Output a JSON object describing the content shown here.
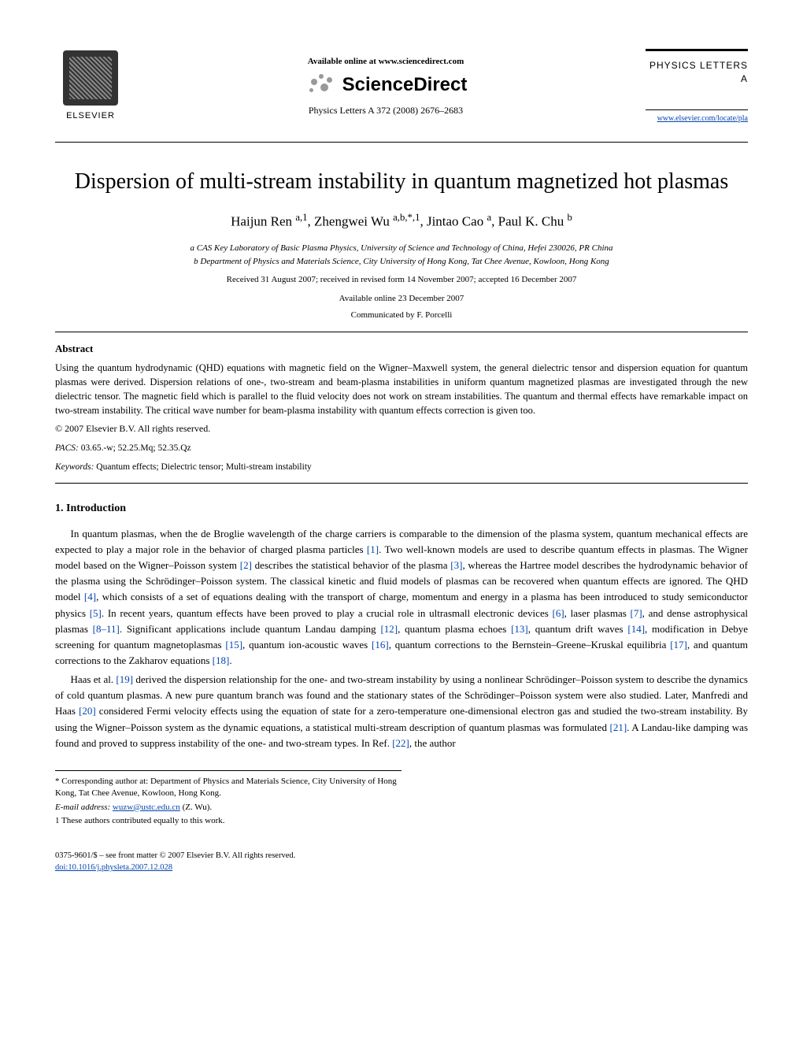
{
  "header": {
    "elsevier_label": "ELSEVIER",
    "available_online": "Available online at www.sciencedirect.com",
    "sciencedirect": "ScienceDirect",
    "journal_ref": "Physics Letters A 372 (2008) 2676–2683",
    "journal_title_right": "PHYSICS LETTERS A",
    "journal_url": "www.elsevier.com/locate/pla"
  },
  "title": "Dispersion of multi-stream instability in quantum magnetized hot plasmas",
  "authors_html": "Haijun Ren <sup>a,1</sup>, Zhengwei Wu <sup>a,b,*,1</sup>, Jintao Cao <sup>a</sup>, Paul K. Chu <sup>b</sup>",
  "affiliations": {
    "a": "a CAS Key Laboratory of Basic Plasma Physics, University of Science and Technology of China, Hefei 230026, PR China",
    "b": "b Department of Physics and Materials Science, City University of Hong Kong, Tat Chee Avenue, Kowloon, Hong Kong"
  },
  "dates": {
    "received": "Received 31 August 2007; received in revised form 14 November 2007; accepted 16 December 2007",
    "available": "Available online 23 December 2007",
    "communicated": "Communicated by F. Porcelli"
  },
  "abstract": {
    "heading": "Abstract",
    "body": "Using the quantum hydrodynamic (QHD) equations with magnetic field on the Wigner–Maxwell system, the general dielectric tensor and dispersion equation for quantum plasmas were derived. Dispersion relations of one-, two-stream and beam-plasma instabilities in uniform quantum magnetized plasmas are investigated through the new dielectric tensor. The magnetic field which is parallel to the fluid velocity does not work on stream instabilities. The quantum and thermal effects have remarkable impact on two-stream instability. The critical wave number for beam-plasma instability with quantum effects correction is given too.",
    "copyright": "© 2007 Elsevier B.V. All rights reserved."
  },
  "pacs": {
    "label": "PACS:",
    "codes": "03.65.-w; 52.25.Mq; 52.35.Qz"
  },
  "keywords": {
    "label": "Keywords:",
    "text": "Quantum effects; Dielectric tensor; Multi-stream instability"
  },
  "section1": {
    "heading": "1. Introduction",
    "p1_a": "In quantum plasmas, when the de Broglie wavelength of the charge carriers is comparable to the dimension of the plasma system, quantum mechanical effects are expected to play a major role in the behavior of charged plasma particles ",
    "r1": "[1]",
    "p1_b": ". Two well-known models are used to describe quantum effects in plasmas. The Wigner model based on the Wigner–Poisson system ",
    "r2": "[2]",
    "p1_c": " describes the statistical behavior of the plasma ",
    "r3": "[3]",
    "p1_d": ", whereas the Hartree model describes the hydrodynamic behavior of the plasma using the Schrödinger–Poisson system. The classical kinetic and fluid models of plasmas can be recovered when quantum effects are ignored. The QHD model ",
    "r4": "[4]",
    "p1_e": ", which consists of a set of equations dealing with the transport of charge, momentum and energy in a plasma has been introduced to study semiconductor physics ",
    "r5": "[5]",
    "p1_f": ". In recent years, quantum effects have been proved to play a crucial role in ultrasmall electronic devices ",
    "r6": "[6]",
    "p1_g": ", laser plasmas ",
    "r7": "[7]",
    "p1_h": ", and dense astrophysical plasmas ",
    "r8": "[8–11]",
    "p1_i": ". Significant applications include quantum Landau damping ",
    "r12": "[12]",
    "p1_j": ", quantum plasma echoes ",
    "r13": "[13]",
    "p1_k": ", quantum drift waves ",
    "r14": "[14]",
    "p1_l": ", modification in Debye screening for quantum magnetoplasmas ",
    "r15": "[15]",
    "p1_m": ", quantum ion-acoustic waves ",
    "r16": "[16]",
    "p1_n": ", quantum corrections to the Bernstein–Greene–Kruskal equilibria ",
    "r17": "[17]",
    "p1_o": ", and quantum corrections to the Zakharov equations ",
    "r18": "[18]",
    "p1_p": ".",
    "p2_a": "Haas et al. ",
    "r19": "[19]",
    "p2_b": " derived the dispersion relationship for the one- and two-stream instability by using a nonlinear Schrödinger–Poisson system to describe the dynamics of cold quantum plasmas. A new pure quantum branch was found and the stationary states of the Schrödinger–Poisson system were also studied. Later, Manfredi and Haas ",
    "r20": "[20]",
    "p2_c": " considered Fermi velocity effects using the equation of state for a zero-temperature one-dimensional electron gas and studied the two-stream instability. By using the Wigner–Poisson system as the dynamic equations, a statistical multi-stream description of quantum plasmas was formulated ",
    "r21": "[21]",
    "p2_d": ". A Landau-like damping was found and proved to suppress instability of the one- and two-stream types. In Ref. ",
    "r22": "[22]",
    "p2_e": ", the author"
  },
  "footnotes": {
    "corr": "* Corresponding author at: Department of Physics and Materials Science, City University of Hong Kong, Tat Chee Avenue, Kowloon, Hong Kong.",
    "email_label": "E-mail address:",
    "email": "wuzw@ustc.edu.cn",
    "email_who": "(Z. Wu).",
    "equal": "1 These authors contributed equally to this work."
  },
  "bottom": {
    "front_matter": "0375-9601/$ – see front matter © 2007 Elsevier B.V. All rights reserved.",
    "doi": "doi:10.1016/j.physleta.2007.12.028"
  },
  "colors": {
    "link": "#0645ad",
    "text": "#000000",
    "bg": "#ffffff",
    "logo_gray": "#999999"
  }
}
